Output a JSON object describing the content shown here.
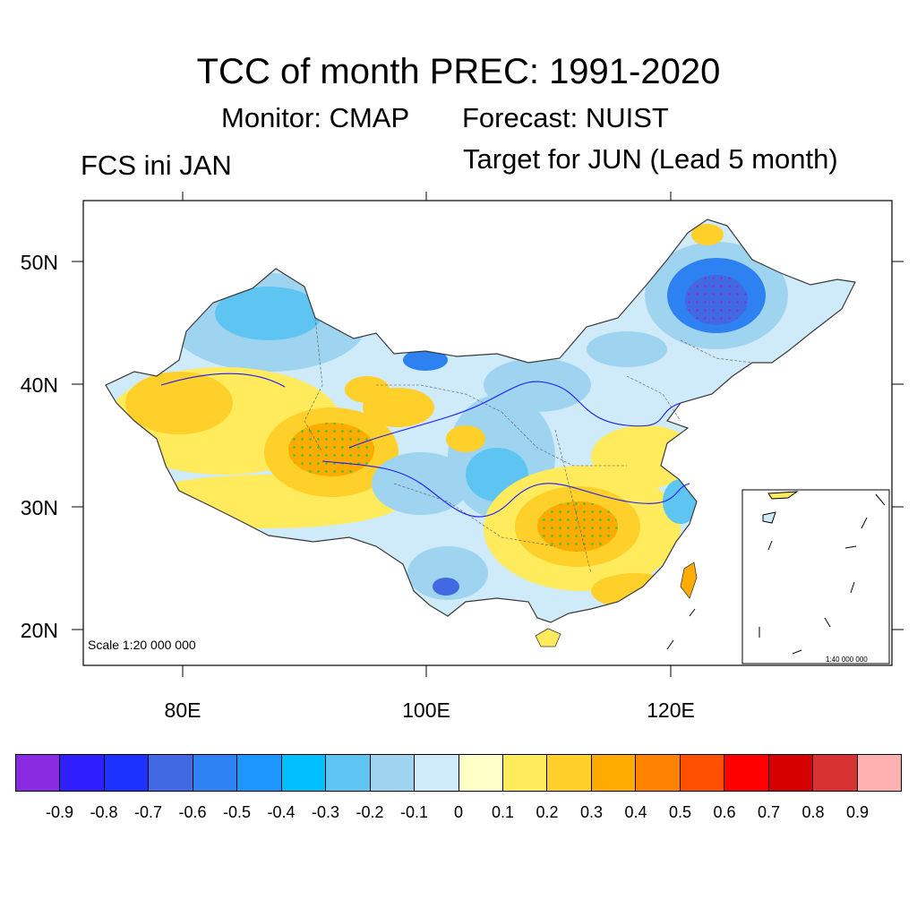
{
  "title": "TCC of month PREC: 1991-2020",
  "subtitle_monitor": "Monitor: CMAP",
  "subtitle_forecast": "Forecast: NUIST",
  "left_label": "FCS ini JAN",
  "right_label": "Target for JUN (Lead 5 month)",
  "map": {
    "lat_labels": [
      "50N",
      "40N",
      "30N",
      "20N"
    ],
    "lon_labels": [
      "80E",
      "100E",
      "120E"
    ],
    "scale_text": "Scale 1:20 000 000",
    "inset_scale_text": "1:40 000 000",
    "significance_dot_color": "#22cc33",
    "boundary_color": "#3a3a3a",
    "river_color": "#1a1aff"
  },
  "colorbar": {
    "labels": [
      "-0.9",
      "-0.8",
      "-0.7",
      "-0.6",
      "-0.5",
      "-0.4",
      "-0.3",
      "-0.2",
      "-0.1",
      "0",
      "0.1",
      "0.2",
      "0.3",
      "0.4",
      "0.5",
      "0.6",
      "0.7",
      "0.8",
      "0.9"
    ],
    "colors": [
      "#8a2be2",
      "#2f1fff",
      "#1c32ff",
      "#4169e1",
      "#2d81f0",
      "#1e96ff",
      "#00bfff",
      "#5ec5f2",
      "#9fd4f0",
      "#cfeaf8",
      "#ffffc8",
      "#ffeb5c",
      "#ffcf2a",
      "#ffab00",
      "#ff8200",
      "#ff4f00",
      "#ff0000",
      "#d70000",
      "#d83232",
      "#ffb0b0"
    ]
  }
}
